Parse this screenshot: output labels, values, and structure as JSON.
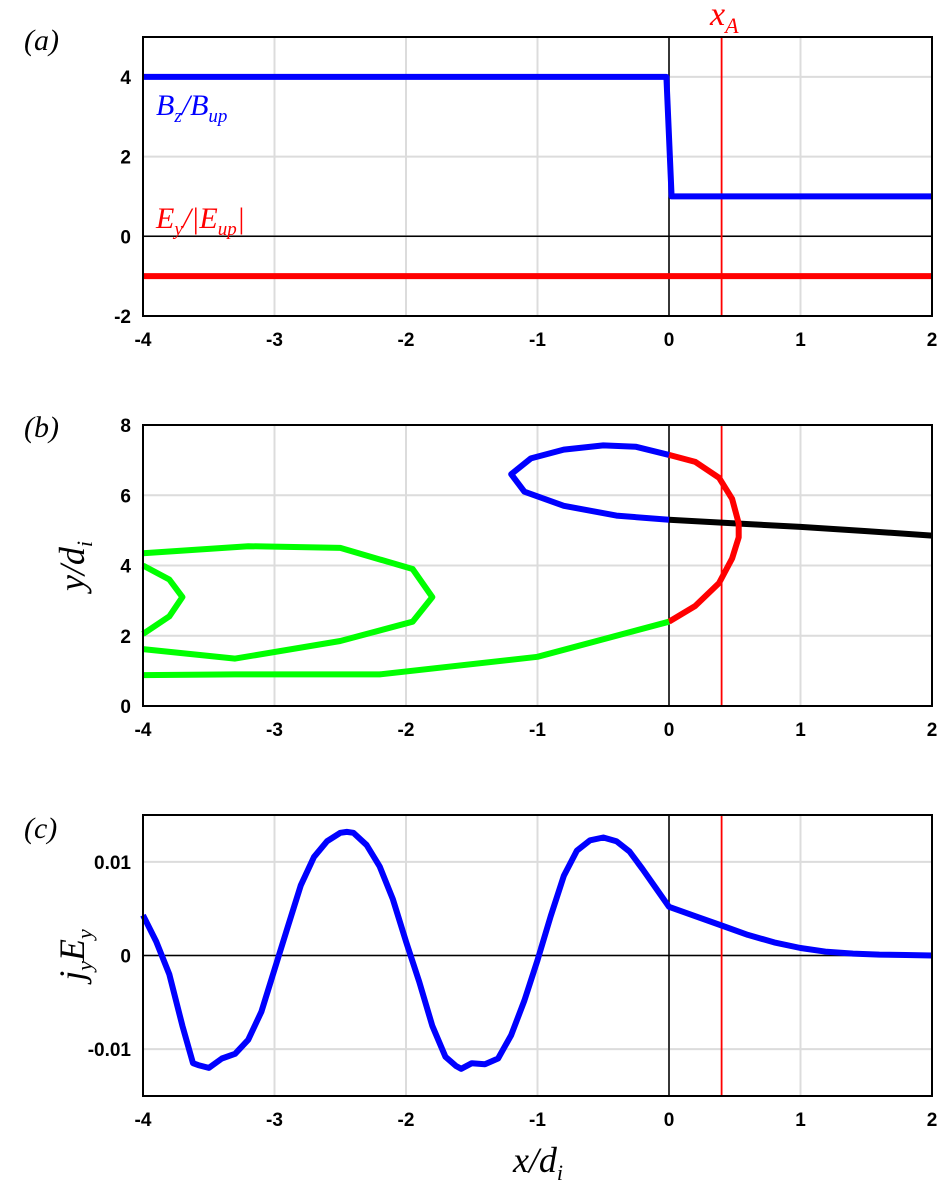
{
  "colors": {
    "blue": "#0000ff",
    "red": "#ff0000",
    "green": "#00ff00",
    "black": "#000000",
    "grid": "#dcdcdc"
  },
  "chart_data": [
    {
      "panel": "(a)",
      "type": "line",
      "xlim": [
        -4,
        2
      ],
      "ylim": [
        -2,
        5
      ],
      "xticks": [
        "-4",
        "-3",
        "-2",
        "-1",
        "0",
        "1",
        "2"
      ],
      "yticks": [
        "-2",
        "0",
        "2",
        "4"
      ],
      "grid": true,
      "vline_label": "x_A",
      "vline_x": 0.4,
      "series": [
        {
          "name": "B_z/B_up",
          "color": "#0000ff",
          "x": [
            -4,
            -0.02,
            0.02,
            2
          ],
          "y": [
            4,
            4,
            1,
            1
          ]
        },
        {
          "name": "E_y/|E_up|",
          "color": "#ff0000",
          "x": [
            -4,
            2
          ],
          "y": [
            -1,
            -1
          ]
        }
      ]
    },
    {
      "panel": "(b)",
      "type": "line",
      "xlim": [
        -4,
        2
      ],
      "ylim": [
        0,
        8
      ],
      "ylabel": "y/d_i",
      "xticks": [
        "-4",
        "-3",
        "-2",
        "-1",
        "0",
        "1",
        "2"
      ],
      "yticks": [
        "0",
        "2",
        "4",
        "6",
        "8"
      ],
      "grid": true,
      "vline_x": 0.4,
      "series": [
        {
          "color": "#000000",
          "x": [
            0,
            0.5,
            1.0,
            1.5,
            2.0
          ],
          "y": [
            5.3,
            5.2,
            5.1,
            4.98,
            4.85
          ]
        },
        {
          "color": "#ff0000",
          "x": [
            0,
            0.2,
            0.38,
            0.48,
            0.53,
            0.53,
            0.48,
            0.38,
            0.2,
            0
          ],
          "y": [
            7.15,
            6.95,
            6.5,
            5.9,
            5.2,
            4.8,
            4.2,
            3.5,
            2.85,
            2.4
          ]
        },
        {
          "color": "#0000ff",
          "x": [
            0,
            -0.25,
            -0.5,
            -0.8,
            -1.05,
            -1.2,
            -1.1,
            -0.8,
            -0.4,
            0
          ],
          "y": [
            7.15,
            7.38,
            7.42,
            7.3,
            7.05,
            6.6,
            6.1,
            5.7,
            5.42,
            5.3
          ]
        },
        {
          "color": "#00ff00",
          "x": [
            0,
            -1.0,
            -2.2,
            -3.3,
            -4.0
          ],
          "y": [
            2.4,
            1.4,
            0.9,
            0.9,
            0.88
          ]
        },
        {
          "color": "#00ff00",
          "x": [
            -4.0,
            -3.2,
            -2.5,
            -1.95,
            -1.8,
            -1.95,
            -2.5,
            -3.3,
            -4.0
          ],
          "y": [
            4.35,
            4.55,
            4.5,
            3.9,
            3.1,
            2.4,
            1.85,
            1.35,
            1.62
          ]
        },
        {
          "color": "#00ff00",
          "x": [
            -4.0,
            -3.8,
            -3.7,
            -3.8,
            -4.0
          ],
          "y": [
            4.0,
            3.6,
            3.1,
            2.55,
            2.05
          ]
        }
      ]
    },
    {
      "panel": "(c)",
      "type": "line",
      "xlim": [
        -4,
        2
      ],
      "ylim": [
        -0.015,
        0.015
      ],
      "xlabel": "x/d_i",
      "ylabel": "j_y E_y",
      "xticks": [
        "-4",
        "-3",
        "-2",
        "-1",
        "0",
        "1",
        "2"
      ],
      "yticks": [
        "-0.01",
        "0",
        "0.01"
      ],
      "grid": true,
      "vline_x": 0.4,
      "series": [
        {
          "color": "#0000ff",
          "x": [
            -4.0,
            -3.9,
            -3.8,
            -3.7,
            -3.62,
            -3.58,
            -3.5,
            -3.4,
            -3.3,
            -3.2,
            -3.1,
            -3.0,
            -2.9,
            -2.8,
            -2.7,
            -2.6,
            -2.5,
            -2.45,
            -2.4,
            -2.3,
            -2.2,
            -2.1,
            -2.0,
            -1.9,
            -1.8,
            -1.7,
            -1.62,
            -1.58,
            -1.5,
            -1.4,
            -1.3,
            -1.2,
            -1.1,
            -1.0,
            -0.9,
            -0.8,
            -0.7,
            -0.6,
            -0.5,
            -0.4,
            -0.3,
            -0.2,
            -0.1,
            0.0,
            0.2,
            0.4,
            0.6,
            0.8,
            1.0,
            1.2,
            1.4,
            1.6,
            1.8,
            2.0
          ],
          "y": [
            0.0043,
            0.0015,
            -0.002,
            -0.0075,
            -0.0115,
            -0.0117,
            -0.012,
            -0.011,
            -0.0105,
            -0.009,
            -0.006,
            -0.0015,
            0.003,
            0.0075,
            0.0105,
            0.0122,
            0.0131,
            0.0132,
            0.0131,
            0.0118,
            0.0095,
            0.006,
            0.0015,
            -0.0028,
            -0.0075,
            -0.0108,
            -0.0118,
            -0.0121,
            -0.0115,
            -0.0116,
            -0.011,
            -0.0085,
            -0.0048,
            -0.0005,
            0.0042,
            0.0085,
            0.0112,
            0.0123,
            0.0126,
            0.0122,
            0.0111,
            0.0092,
            0.0072,
            0.0052,
            0.0042,
            0.0032,
            0.0022,
            0.0014,
            0.0008,
            0.0004,
            0.0002,
            0.0001,
            5e-05,
            0.0
          ]
        }
      ]
    }
  ]
}
